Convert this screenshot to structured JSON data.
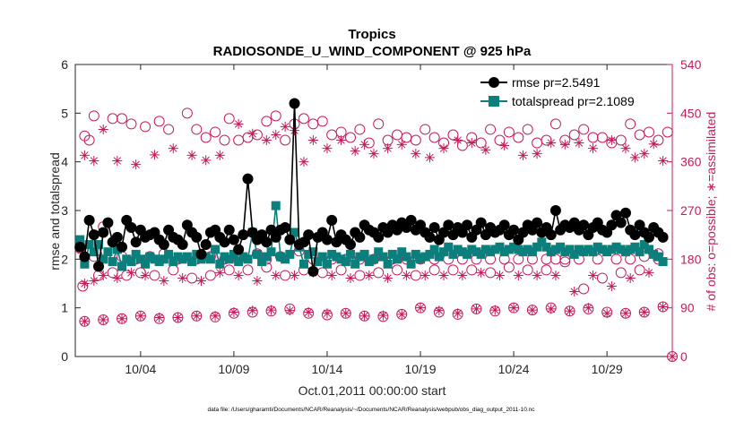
{
  "chart_data": {
    "type": "line",
    "title": "Tropics",
    "subtitle": "RADIOSONDE_U_WIND_COMPONENT @ 925 hPa",
    "xlabel": "Oct.01,2011 00:00:00 start",
    "ylabel": "rmse and totalspread",
    "ylabel_right": "# of obs: o=possible; ∗=assimilated",
    "footnote": "data file: /Users/gharamti/Documents/NCAR/Reanalysis/~/Documents/NCAR/Reanalysis/webpub/obs_diag_output_2011-10.nc",
    "xlim": [
      0.5,
      32.5
    ],
    "ylim": [
      0,
      6
    ],
    "ylim_right": [
      0,
      540
    ],
    "x_ticks": [
      4,
      9,
      14,
      19,
      24,
      29
    ],
    "x_tick_labels": [
      "10/04",
      "10/09",
      "10/14",
      "10/19",
      "10/24",
      "10/29"
    ],
    "y_ticks": [
      "0",
      "1",
      "2",
      "3",
      "4",
      "5",
      "6"
    ],
    "y_ticks_right": [
      "0",
      "90",
      "180",
      "270",
      "360",
      "450",
      "540"
    ],
    "colors": {
      "rmse": "#000000",
      "spread": "#0b7f7c",
      "obs": "#c51b5c"
    },
    "legend": [
      "rmse pr=2.5491",
      "totalspread pr=2.1089"
    ],
    "x": [
      0.75,
      1,
      1.25,
      1.5,
      1.75,
      2,
      2.25,
      2.5,
      2.75,
      3,
      3.25,
      3.5,
      3.75,
      4,
      4.25,
      4.5,
      4.75,
      5,
      5.25,
      5.5,
      5.75,
      6,
      6.25,
      6.5,
      6.75,
      7,
      7.25,
      7.5,
      7.75,
      8,
      8.25,
      8.5,
      8.75,
      9,
      9.25,
      9.5,
      9.75,
      10,
      10.25,
      10.5,
      10.75,
      11,
      11.25,
      11.5,
      11.75,
      12,
      12.25,
      12.5,
      12.75,
      13,
      13.25,
      13.5,
      13.75,
      14,
      14.25,
      14.5,
      14.75,
      15,
      15.25,
      15.5,
      15.75,
      16,
      16.25,
      16.5,
      16.75,
      17,
      17.25,
      17.5,
      17.75,
      18,
      18.25,
      18.5,
      18.75,
      19,
      19.25,
      19.5,
      19.75,
      20,
      20.25,
      20.5,
      20.75,
      21,
      21.25,
      21.5,
      21.75,
      22,
      22.25,
      22.5,
      22.75,
      23,
      23.25,
      23.5,
      23.75,
      24,
      24.25,
      24.5,
      24.75,
      25,
      25.25,
      25.5,
      25.75,
      26,
      26.25,
      26.5,
      26.75,
      27,
      27.25,
      27.5,
      27.75,
      28,
      28.25,
      28.5,
      28.75,
      29,
      29.25,
      29.5,
      29.75,
      30,
      30.25,
      30.5,
      30.75,
      31,
      31.25,
      31.5,
      31.75,
      32
    ],
    "series": [
      {
        "name": "rmse pr=2.5491",
        "values": [
          2.25,
          2.05,
          2.8,
          2.5,
          1.85,
          2.55,
          2.75,
          2.35,
          2.45,
          2.25,
          2.8,
          2.65,
          2.35,
          2.6,
          2.45,
          2.5,
          2.55,
          2.4,
          2.3,
          2.6,
          2.45,
          2.4,
          2.3,
          2.7,
          2.55,
          2.45,
          2.1,
          2.3,
          2.55,
          2.6,
          2.45,
          2.35,
          2.6,
          2.4,
          2.2,
          2.5,
          3.65,
          2.55,
          2.4,
          2.5,
          2.35,
          2.6,
          2.45,
          2.6,
          2.65,
          2.4,
          5.2,
          2.3,
          2.35,
          2.5,
          1.75,
          2.45,
          2.55,
          2.4,
          2.8,
          2.35,
          2.5,
          2.4,
          2.3,
          2.55,
          2.45,
          2.7,
          2.6,
          2.55,
          2.45,
          2.65,
          2.55,
          2.7,
          2.6,
          2.75,
          2.65,
          2.8,
          2.6,
          2.7,
          2.55,
          2.45,
          2.65,
          2.4,
          2.55,
          2.7,
          2.5,
          2.65,
          2.55,
          2.7,
          2.45,
          2.6,
          2.75,
          2.5,
          2.65,
          2.55,
          2.6,
          2.7,
          2.5,
          2.6,
          2.4,
          2.55,
          2.7,
          2.6,
          2.75,
          2.55,
          2.65,
          2.5,
          3.0,
          2.6,
          2.7,
          2.65,
          2.75,
          2.6,
          2.7,
          2.5,
          2.65,
          2.75,
          2.6,
          2.55,
          2.7,
          2.9,
          2.75,
          2.95,
          2.6,
          2.5,
          2.7,
          2.55,
          2.45,
          2.65,
          2.55,
          2.45
        ]
      },
      {
        "name": "totalspread pr=2.1089",
        "values": [
          2.4,
          1.9,
          2.3,
          2.15,
          2.3,
          2.0,
          2.15,
          1.95,
          2.2,
          1.85,
          2.0,
          1.95,
          2.1,
          2.0,
          1.9,
          2.05,
          2.0,
          1.95,
          2.0,
          2.1,
          1.95,
          2.05,
          2.0,
          2.05,
          1.95,
          2.1,
          2.0,
          2.05,
          2.0,
          2.2,
          1.9,
          2.05,
          2.0,
          2.1,
          1.95,
          2.05,
          2.0,
          2.55,
          2.1,
          1.95,
          2.05,
          2.15,
          3.1,
          2.05,
          2.0,
          2.1,
          2.55,
          2.25,
          1.9,
          2.1,
          2.15,
          1.95,
          2.05,
          1.9,
          2.1,
          2.05,
          2.0,
          1.95,
          2.1,
          1.9,
          2.05,
          2.1,
          1.95,
          2.0,
          2.15,
          2.05,
          1.9,
          2.1,
          2.0,
          2.15,
          2.05,
          1.9,
          2.1,
          2.0,
          2.05,
          2.1,
          2.2,
          2.05,
          2.15,
          2.25,
          2.1,
          2.2,
          2.15,
          2.1,
          2.2,
          2.15,
          2.1,
          2.2,
          2.15,
          2.2,
          2.25,
          2.15,
          2.2,
          2.25,
          2.2,
          2.15,
          2.2,
          2.15,
          2.25,
          2.35,
          2.25,
          2.15,
          2.2,
          2.25,
          2.15,
          2.2,
          2.1,
          2.2,
          2.15,
          2.2,
          2.15,
          2.25,
          2.2,
          2.15,
          2.2,
          2.25,
          2.2,
          2.15,
          2.2,
          2.25,
          2.15,
          2.3,
          2.2,
          2.1,
          2.05,
          1.95
        ]
      },
      {
        "name": "possible",
        "axis": "right",
        "x": [
          1,
          1.25,
          1.5,
          2.5,
          3,
          3.5,
          4.25,
          5,
          5.5,
          6.5,
          7,
          7.5,
          8,
          8.5,
          8.75,
          9.25,
          9.75,
          10.25,
          10.75,
          11.25,
          11.75,
          12.25,
          12.75,
          13.25,
          13.75,
          14.25,
          14.75,
          15.25,
          15.75,
          16.25,
          16.75,
          17.25,
          17.75,
          18.25,
          18.75,
          19.25,
          19.75,
          20.25,
          20.75,
          21.25,
          21.75,
          22.25,
          22.75,
          23.25,
          23.75,
          24.25,
          24.75,
          25.25,
          25.75,
          26.25,
          26.75,
          27.25,
          27.75,
          28.25,
          28.75,
          29.25,
          29.75,
          30.25,
          30.75,
          31.25,
          31.75,
          32.25
        ],
        "values": [
          408,
          400,
          445,
          440,
          440,
          430,
          425,
          435,
          420,
          450,
          420,
          405,
          415,
          400,
          440,
          400,
          405,
          410,
          435,
          445,
          400,
          430,
          440,
          430,
          435,
          410,
          415,
          405,
          420,
          395,
          430,
          400,
          410,
          405,
          400,
          420,
          405,
          395,
          410,
          390,
          405,
          395,
          420,
          400,
          415,
          405,
          420,
          395,
          400,
          430,
          400,
          410,
          420,
          405,
          405,
          395,
          400,
          430,
          410,
          415,
          400,
          415
        ]
      },
      {
        "name": "assimilated",
        "axis": "right",
        "x": [
          1,
          1.5,
          2,
          2.75,
          3.75,
          4.75,
          5.75,
          6.75,
          7.5,
          8.25,
          9.25,
          10,
          10.75,
          11.25,
          11.75,
          12.25,
          12.75,
          13.25,
          14,
          14.75,
          15.5,
          16,
          16.5,
          17.25,
          18,
          18.75,
          19.5,
          20.25,
          21,
          21.75,
          22.5,
          23.5,
          24.5,
          25.25,
          26,
          26.75,
          27.5,
          28.25,
          29.25,
          30,
          30.5,
          31,
          31.5,
          32
        ],
        "values": [
          372,
          362,
          420,
          362,
          355,
          373,
          385,
          372,
          363,
          372,
          430,
          412,
          400,
          410,
          425,
          418,
          360,
          400,
          385,
          400,
          380,
          392,
          375,
          385,
          392,
          375,
          368,
          385,
          400,
          395,
          382,
          390,
          372,
          375,
          395,
          392,
          395,
          385,
          400,
          385,
          368,
          375,
          393,
          362
        ]
      },
      {
        "name": "possible-low",
        "axis": "right",
        "x": [
          0.75,
          1.5,
          2,
          3,
          3.75,
          4.5,
          5.25,
          6,
          7,
          7.75,
          8.5,
          9.25,
          10.25,
          10.75,
          11.5,
          12.5,
          13.25,
          14.25,
          15,
          15.75,
          16.5,
          17.5,
          18.25,
          19,
          19.75,
          20.5,
          21.25,
          22,
          22.75,
          23.5,
          24.25,
          25,
          25.75,
          26.25,
          26.75,
          27.5,
          28.5,
          29.5,
          30.25,
          31,
          31.75
        ],
        "values": [
          200,
          185,
          240,
          185,
          180,
          185,
          190,
          180,
          180,
          185,
          180,
          180,
          190,
          180,
          185,
          195,
          180,
          180,
          180,
          180,
          180,
          180,
          180,
          180,
          180,
          180,
          180,
          180,
          180,
          180,
          180,
          180,
          180,
          180,
          180,
          180,
          180,
          180,
          180,
          185,
          190
        ]
      }
    ],
    "series_low": [
      {
        "name": "possible-bottom",
        "axis": "right",
        "x": [
          1,
          2,
          3,
          4,
          5,
          6,
          7,
          8,
          9,
          10,
          11,
          12,
          13,
          14,
          15,
          16,
          17,
          18,
          19,
          20,
          21,
          22,
          23,
          24,
          25,
          26,
          27,
          28,
          29,
          30,
          31,
          32
        ],
        "values": [
          65,
          68,
          70,
          75,
          70,
          72,
          75,
          73,
          80,
          82,
          84,
          88,
          80,
          77,
          80,
          75,
          74,
          78,
          90,
          82,
          78,
          88,
          84,
          90,
          86,
          90,
          84,
          88,
          82,
          80,
          82,
          92
        ]
      },
      {
        "name": "assimilated-bottom",
        "axis": "right",
        "x": [
          1,
          2,
          3,
          4,
          5,
          6,
          7,
          8,
          9,
          10,
          11,
          12,
          13,
          14,
          15,
          16,
          17,
          18,
          19,
          20,
          21,
          22,
          23,
          24,
          25,
          26,
          27,
          28,
          29,
          30,
          31,
          32
        ],
        "values": [
          65,
          68,
          70,
          75,
          72,
          72,
          75,
          75,
          82,
          85,
          86,
          85,
          82,
          80,
          80,
          75,
          76,
          78,
          90,
          85,
          80,
          88,
          86,
          90,
          86,
          88,
          84,
          90,
          80,
          80,
          82,
          92
        ]
      },
      {
        "name": "assimilated-mid",
        "axis": "right",
        "x": [
          1,
          1.5,
          2,
          2.75,
          3.5,
          4.25,
          5.25,
          6.25,
          7.25,
          8.25,
          9.25,
          10.25,
          11.25,
          12.25,
          13.25,
          14.25,
          15.25,
          16.25,
          17.25,
          18.25,
          19.25,
          20.25,
          21.25,
          22.25,
          23.25,
          24.25,
          25.25,
          26.25,
          27.25,
          28.25,
          29.25,
          30.25,
          31.25
        ],
        "values": [
          135,
          140,
          150,
          145,
          155,
          150,
          140,
          145,
          140,
          155,
          150,
          140,
          150,
          150,
          155,
          150,
          145,
          150,
          145,
          150,
          150,
          150,
          150,
          155,
          150,
          150,
          150,
          150,
          120,
          150,
          130,
          145,
          155
        ]
      },
      {
        "name": "possible-mid",
        "axis": "right",
        "x": [
          0.9,
          1.75,
          2.5,
          3.25,
          4,
          4.75,
          5.75,
          6.75,
          7.75,
          8.75,
          9.75,
          10.75,
          11.75,
          12.75,
          13.75,
          14.75,
          15.75,
          16.75,
          17.75,
          18.75,
          19.75,
          20.75,
          21.75,
          22.75,
          23.75,
          24.75,
          25.75,
          26.75,
          27.75,
          28.75,
          29.75,
          30.75,
          31.75
        ],
        "values": [
          130,
          150,
          155,
          150,
          155,
          150,
          160,
          145,
          150,
          160,
          160,
          165,
          150,
          160,
          155,
          160,
          150,
          155,
          160,
          150,
          160,
          160,
          160,
          155,
          165,
          160,
          160,
          175,
          125,
          145,
          155,
          160,
          180
        ]
      }
    ],
    "rmse_legend_label": "rmse pr=2.5491",
    "spread_legend_label": "totalspread pr=2.1089"
  }
}
